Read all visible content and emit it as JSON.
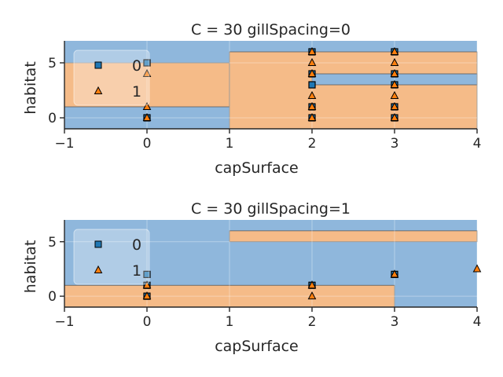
{
  "colors": {
    "class_0_region": "#8fb7dc",
    "class_1_region": "#f5bb88",
    "class_0_marker": "#1f77b4",
    "class_1_marker": "#ff7f0e",
    "boundary": "#5a5a5a",
    "axis": "#262626",
    "grid": "#ffffff"
  },
  "chart_data": [
    {
      "type": "scatter",
      "title": "C = 30 gillSpacing=0",
      "xlabel": "capSurface",
      "ylabel": "habitat",
      "xlim": [
        -1,
        4
      ],
      "ylim": [
        -1,
        7
      ],
      "xticks": [
        -1,
        0,
        1,
        2,
        3,
        4
      ],
      "yticks": [
        0,
        5
      ],
      "legend_placement": "upper-left",
      "background_region": "0",
      "decision_regions": [
        {
          "class": "1",
          "x": [
            -1,
            1
          ],
          "y": [
            1,
            5
          ]
        },
        {
          "class": "1",
          "x": [
            1,
            4
          ],
          "y": [
            -1,
            6
          ]
        },
        {
          "class": "0",
          "x": [
            2,
            4
          ],
          "y": [
            3,
            4
          ]
        }
      ],
      "series": [
        {
          "name": "0",
          "marker": "square",
          "points": [
            [
              0,
              5
            ],
            [
              0,
              0
            ],
            [
              2,
              6
            ],
            [
              2,
              4
            ],
            [
              2,
              3
            ],
            [
              2,
              1
            ],
            [
              2,
              0
            ],
            [
              3,
              6
            ],
            [
              3,
              4
            ],
            [
              3,
              3
            ],
            [
              3,
              1
            ],
            [
              3,
              0
            ]
          ]
        },
        {
          "name": "1",
          "marker": "triangle",
          "points": [
            [
              0,
              4
            ],
            [
              0,
              1
            ],
            [
              0,
              0
            ],
            [
              2,
              6
            ],
            [
              2,
              5
            ],
            [
              2,
              4
            ],
            [
              2,
              2
            ],
            [
              2,
              1
            ],
            [
              2,
              0
            ],
            [
              3,
              6
            ],
            [
              3,
              5
            ],
            [
              3,
              4
            ],
            [
              3,
              3
            ],
            [
              3,
              2
            ],
            [
              3,
              1
            ],
            [
              3,
              0
            ]
          ]
        }
      ]
    },
    {
      "type": "scatter",
      "title": "C = 30 gillSpacing=1",
      "xlabel": "capSurface",
      "ylabel": "habitat",
      "xlim": [
        -1,
        4
      ],
      "ylim": [
        -1,
        7
      ],
      "xticks": [
        -1,
        0,
        1,
        2,
        3,
        4
      ],
      "yticks": [
        0,
        5
      ],
      "legend_placement": "upper-left",
      "background_region": "0",
      "decision_regions": [
        {
          "class": "1",
          "x": [
            1,
            4
          ],
          "y": [
            5,
            6
          ]
        },
        {
          "class": "1",
          "x": [
            -1,
            3
          ],
          "y": [
            -1,
            1
          ]
        }
      ],
      "series": [
        {
          "name": "0",
          "marker": "square",
          "points": [
            [
              0,
              2
            ],
            [
              0,
              1
            ],
            [
              0,
              0
            ],
            [
              2,
              1
            ],
            [
              3,
              2
            ]
          ]
        },
        {
          "name": "1",
          "marker": "triangle",
          "points": [
            [
              0,
              1
            ],
            [
              0,
              0
            ],
            [
              2,
              1
            ],
            [
              2,
              0
            ],
            [
              3,
              2
            ],
            [
              4,
              2.5
            ]
          ]
        }
      ]
    }
  ]
}
